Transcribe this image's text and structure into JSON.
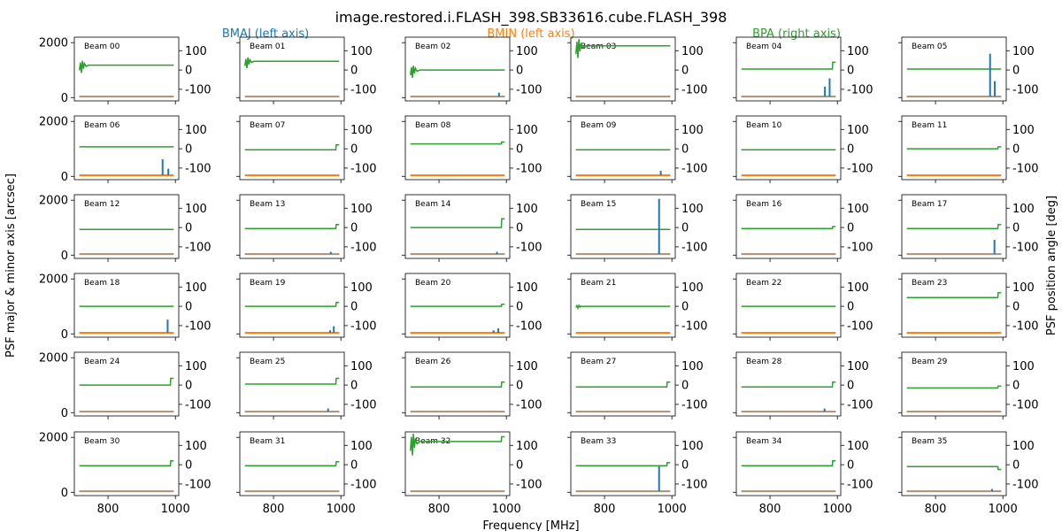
{
  "chart_data": {
    "type": "line",
    "title": "image.restored.i.FLASH_398.SB33616.cube.FLASH_398",
    "xlabel": "Frequency [MHz]",
    "ylabel_left": "PSF major & minor axis [arcsec]",
    "ylabel_right": "PSF position angle [deg]",
    "legend": [
      {
        "name": "BMAJ (left axis)",
        "color": "#1f77b4"
      },
      {
        "name": "BMIN (left axis)",
        "color": "#ff7f0e"
      },
      {
        "name": "BPA (right axis)",
        "color": "#2ca02c"
      }
    ],
    "grid": false,
    "layout": {
      "rows": 6,
      "cols": 6
    },
    "xlim": [
      700,
      1010
    ],
    "xticks": [
      800,
      1000
    ],
    "ylim_left": [
      -120,
      2200
    ],
    "yticks_left": [
      0,
      2000
    ],
    "ylim_right": [
      -160,
      170
    ],
    "yticks_right": [
      100,
      0,
      -100
    ],
    "beams": [
      {
        "label": "Beam 00",
        "bmaj": 40,
        "bmin": 30,
        "bpa": 25,
        "bpa_wobble": 45,
        "spikes": []
      },
      {
        "label": "Beam 01",
        "bmaj": 40,
        "bmin": 30,
        "bpa": 45,
        "bpa_wobble": 40,
        "spikes": []
      },
      {
        "label": "Beam 02",
        "bmaj": 40,
        "bmin": 30,
        "bpa": 0,
        "bpa_wobble": 45,
        "spikes": [
          {
            "x": 978,
            "y": 180
          }
        ]
      },
      {
        "label": "Beam 03",
        "bmaj": 40,
        "bmin": 30,
        "bpa": 125,
        "bpa_wobble": 70,
        "spikes": []
      },
      {
        "label": "Beam 04",
        "bmaj": 40,
        "bmin": 30,
        "bpa": 5,
        "bpa_end": 40,
        "spikes": [
          {
            "x": 963,
            "y": 400
          },
          {
            "x": 977,
            "y": 700
          }
        ]
      },
      {
        "label": "Beam 05",
        "bmaj": 40,
        "bmin": 30,
        "bpa": 5,
        "spikes": [
          {
            "x": 962,
            "y": 1600
          },
          {
            "x": 976,
            "y": 600
          }
        ]
      },
      {
        "label": "Beam 06",
        "bmaj": 40,
        "bmin": 30,
        "bpa": 10,
        "spikes": [
          {
            "x": 962,
            "y": 620
          },
          {
            "x": 979,
            "y": 280
          }
        ]
      },
      {
        "label": "Beam 07",
        "bmaj": 40,
        "bmin": 30,
        "bpa": -5,
        "bpa_end": 20,
        "spikes": []
      },
      {
        "label": "Beam 08",
        "bmaj": 40,
        "bmin": 30,
        "bpa": 25,
        "bpa_end": 35,
        "spikes": []
      },
      {
        "label": "Beam 09",
        "bmaj": 40,
        "bmin": 30,
        "bpa": -5,
        "spikes": [
          {
            "x": 967,
            "y": 200
          }
        ]
      },
      {
        "label": "Beam 10",
        "bmaj": 40,
        "bmin": 30,
        "bpa": -5,
        "spikes": []
      },
      {
        "label": "Beam 11",
        "bmaj": 40,
        "bmin": 30,
        "bpa": 0,
        "bpa_end": 10,
        "spikes": []
      },
      {
        "label": "Beam 12",
        "bmaj": 40,
        "bmin": 30,
        "bpa": -10,
        "spikes": []
      },
      {
        "label": "Beam 13",
        "bmaj": 40,
        "bmin": 30,
        "bpa": -5,
        "bpa_end": 15,
        "spikes": [
          {
            "x": 970,
            "y": 120
          }
        ]
      },
      {
        "label": "Beam 14",
        "bmaj": 40,
        "bmin": 30,
        "bpa": 0,
        "bpa_end": 45,
        "spikes": [
          {
            "x": 972,
            "y": 120
          }
        ]
      },
      {
        "label": "Beam 15",
        "bmaj": 40,
        "bmin": 30,
        "bpa": -10,
        "spikes": [
          {
            "x": 962,
            "y": 2050
          }
        ]
      },
      {
        "label": "Beam 16",
        "bmaj": 40,
        "bmin": 30,
        "bpa": -5,
        "bpa_end": 5,
        "spikes": []
      },
      {
        "label": "Beam 17",
        "bmaj": 40,
        "bmin": 30,
        "bpa": -5,
        "bpa_end": 15,
        "spikes": [
          {
            "x": 975,
            "y": 560
          }
        ]
      },
      {
        "label": "Beam 18",
        "bmaj": 40,
        "bmin": 30,
        "bpa": 0,
        "spikes": [
          {
            "x": 977,
            "y": 520
          }
        ]
      },
      {
        "label": "Beam 19",
        "bmaj": 40,
        "bmin": 30,
        "bpa": 0,
        "bpa_end": 20,
        "spikes": [
          {
            "x": 968,
            "y": 130
          },
          {
            "x": 979,
            "y": 280
          }
        ]
      },
      {
        "label": "Beam 20",
        "bmaj": 40,
        "bmin": 30,
        "bpa": 0,
        "bpa_end": 10,
        "spikes": [
          {
            "x": 962,
            "y": 130
          },
          {
            "x": 976,
            "y": 200
          }
        ]
      },
      {
        "label": "Beam 21",
        "bmaj": 40,
        "bmin": 30,
        "bpa": 0,
        "bpa_wobble": 10,
        "spikes": []
      },
      {
        "label": "Beam 22",
        "bmaj": 40,
        "bmin": 30,
        "bpa": 0,
        "spikes": []
      },
      {
        "label": "Beam 23",
        "bmaj": 40,
        "bmin": 30,
        "bpa": 45,
        "bpa_end": 70,
        "spikes": []
      },
      {
        "label": "Beam 24",
        "bmaj": 40,
        "bmin": 30,
        "bpa": 0,
        "bpa_end": 35,
        "spikes": []
      },
      {
        "label": "Beam 25",
        "bmaj": 40,
        "bmin": 30,
        "bpa": 5,
        "bpa_end": 35,
        "spikes": [
          {
            "x": 962,
            "y": 150
          }
        ]
      },
      {
        "label": "Beam 26",
        "bmaj": 40,
        "bmin": 30,
        "bpa": -10,
        "bpa_end": 15,
        "spikes": []
      },
      {
        "label": "Beam 27",
        "bmaj": 40,
        "bmin": 30,
        "bpa": -10,
        "bpa_end": 15,
        "spikes": []
      },
      {
        "label": "Beam 28",
        "bmaj": 40,
        "bmin": 30,
        "bpa": -10,
        "bpa_end": 15,
        "spikes": [
          {
            "x": 962,
            "y": 150
          }
        ]
      },
      {
        "label": "Beam 29",
        "bmaj": 40,
        "bmin": 30,
        "bpa": -15,
        "bpa_end": -5,
        "spikes": []
      },
      {
        "label": "Beam 30",
        "bmaj": 40,
        "bmin": 30,
        "bpa": -5,
        "bpa_end": 20,
        "spikes": []
      },
      {
        "label": "Beam 31",
        "bmaj": 40,
        "bmin": 30,
        "bpa": -5,
        "bpa_end": 15,
        "spikes": []
      },
      {
        "label": "Beam 32",
        "bmaj": 40,
        "bmin": 30,
        "bpa": 120,
        "bpa_end": 145,
        "bpa_wobble": 80,
        "spikes": []
      },
      {
        "label": "Beam 33",
        "bmaj": 40,
        "bmin": 30,
        "bpa": -5,
        "bpa_end": 10,
        "spikes": [
          {
            "x": 962,
            "y": 950
          }
        ]
      },
      {
        "label": "Beam 34",
        "bmaj": 40,
        "bmin": 30,
        "bpa": -5,
        "bpa_end": 20,
        "spikes": []
      },
      {
        "label": "Beam 35",
        "bmaj": 40,
        "bmin": 30,
        "bpa": -10,
        "bpa_end": -25,
        "spikes": [
          {
            "x": 968,
            "y": 120
          }
        ]
      }
    ]
  }
}
